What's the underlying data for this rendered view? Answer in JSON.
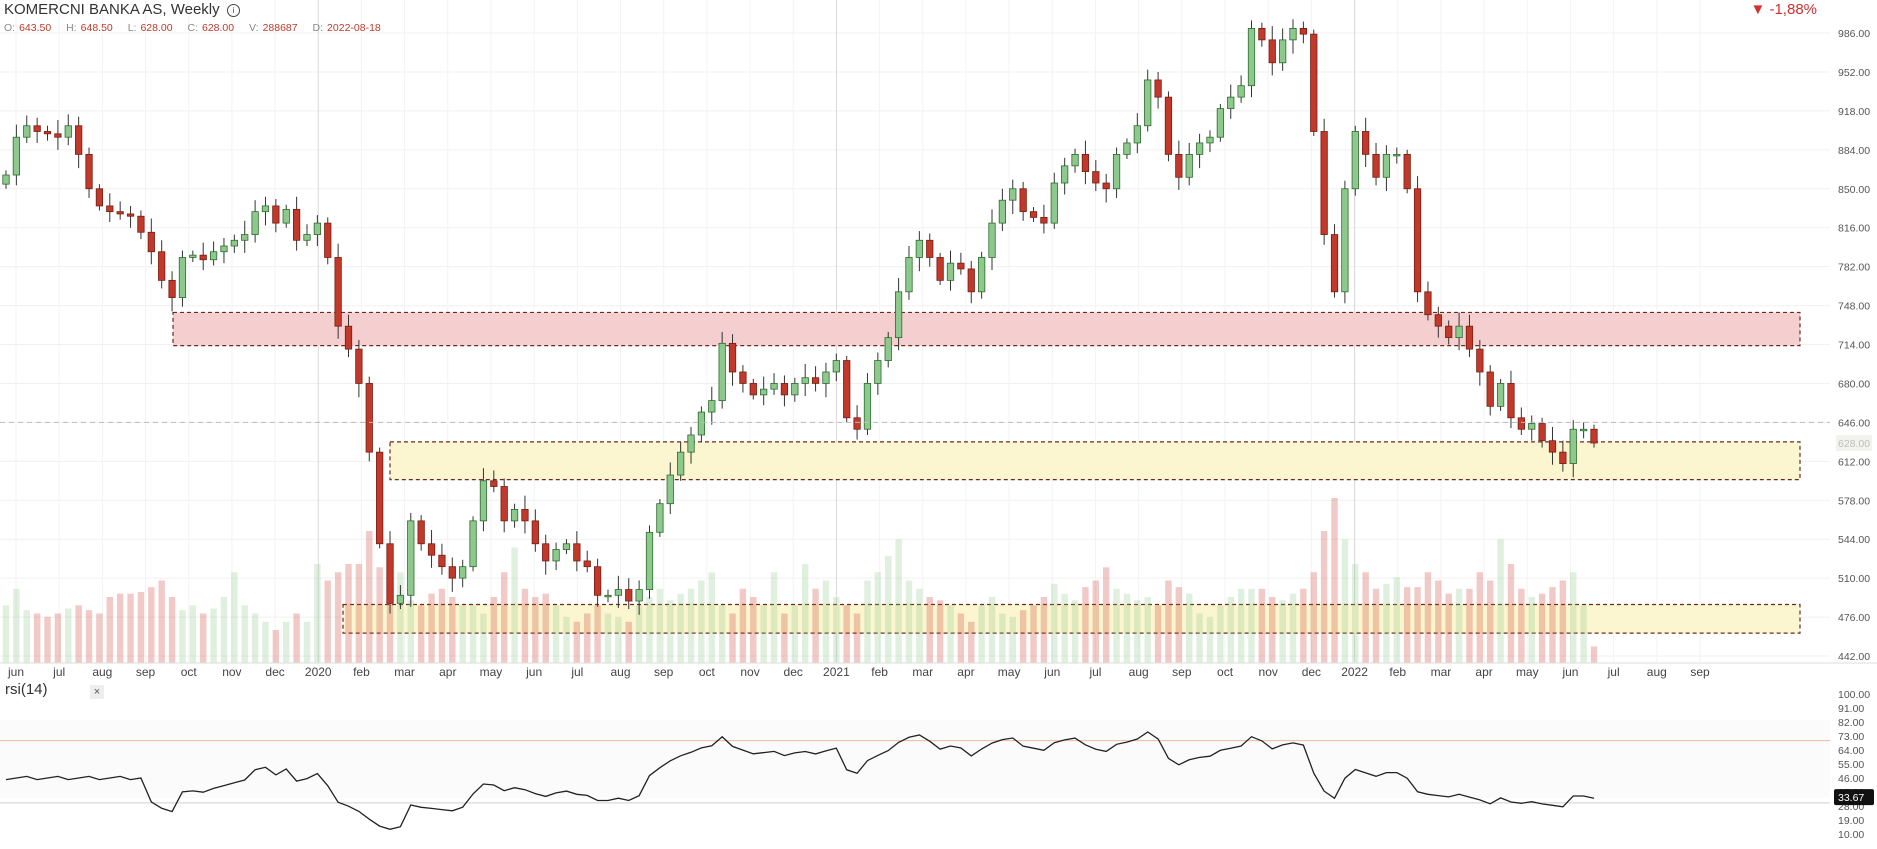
{
  "header": {
    "title": "KOMERCNI BANKA AS, Weekly",
    "ohlc": [
      {
        "label": "O:",
        "value": "643.50"
      },
      {
        "label": "H:",
        "value": "648.50"
      },
      {
        "label": "L:",
        "value": "628.00"
      },
      {
        "label": "C:",
        "value": "628.00"
      },
      {
        "label": "V:",
        "value": "288687"
      },
      {
        "label": "D:",
        "value": "2022-08-18"
      }
    ],
    "change": "▼ -1,88%"
  },
  "indicator": {
    "label": "rsi(14)",
    "close": "×"
  },
  "colors": {
    "up": "#8dc88d",
    "down": "#c0392b",
    "resistance": "#f5cfcf",
    "support": "#fbf6cf"
  },
  "chart_data": {
    "type": "candlestick",
    "price_axis": {
      "min": 442,
      "max": 986,
      "ticks": [
        "986.00",
        "952.00",
        "918.00",
        "884.00",
        "850.00",
        "816.00",
        "782.00",
        "748.00",
        "714.00",
        "680.00",
        "646.00",
        "612.00",
        "578.00",
        "544.00",
        "510.00",
        "476.00",
        "442.00"
      ],
      "current_price_label": "628.00"
    },
    "time_axis": [
      "jun",
      "jul",
      "aug",
      "sep",
      "oct",
      "nov",
      "dec",
      "2020",
      "feb",
      "mar",
      "apr",
      "may",
      "jun",
      "jul",
      "aug",
      "sep",
      "oct",
      "nov",
      "dec",
      "2021",
      "feb",
      "mar",
      "apr",
      "may",
      "jun",
      "jul",
      "aug",
      "sep",
      "oct",
      "nov",
      "dec",
      "2022",
      "feb",
      "mar",
      "apr",
      "may",
      "jun",
      "jul",
      "aug",
      "sep"
    ],
    "zones": [
      {
        "name": "resistance",
        "low": 713,
        "high": 742
      },
      {
        "name": "support",
        "low": 596,
        "high": 629
      },
      {
        "name": "volume-support",
        "low": 462,
        "high": 487
      }
    ],
    "closes": [
      862,
      895,
      905,
      900,
      898,
      895,
      905,
      880,
      850,
      835,
      830,
      828,
      826,
      812,
      795,
      770,
      755,
      790,
      792,
      788,
      795,
      800,
      805,
      810,
      830,
      835,
      820,
      832,
      805,
      810,
      820,
      790,
      730,
      710,
      680,
      620,
      540,
      488,
      495,
      560,
      540,
      530,
      520,
      510,
      520,
      560,
      595,
      590,
      560,
      570,
      560,
      540,
      525,
      535,
      540,
      525,
      520,
      495,
      495,
      500,
      490,
      500,
      550,
      575,
      600,
      620,
      635,
      655,
      665,
      715,
      690,
      680,
      670,
      675,
      680,
      670,
      680,
      685,
      680,
      690,
      700,
      650,
      640,
      680,
      700,
      720,
      760,
      790,
      805,
      790,
      770,
      785,
      780,
      760,
      790,
      820,
      840,
      850,
      830,
      825,
      820,
      855,
      870,
      880,
      865,
      855,
      850,
      880,
      890,
      905,
      945,
      930,
      880,
      860,
      880,
      890,
      895,
      920,
      930,
      940,
      990,
      980,
      960,
      980,
      990,
      985,
      900,
      810,
      760,
      850,
      900,
      880,
      860,
      880,
      880,
      850,
      760,
      740,
      730,
      720,
      730,
      710,
      690,
      660,
      680,
      650,
      640,
      645,
      630,
      620,
      610,
      640,
      640,
      628
    ],
    "volume_levels": [
      0.35,
      0.45,
      0.32,
      0.3,
      0.28,
      0.3,
      0.33,
      0.35,
      0.32,
      0.3,
      0.4,
      0.42,
      0.42,
      0.43,
      0.46,
      0.5,
      0.4,
      0.32,
      0.35,
      0.3,
      0.33,
      0.4,
      0.55,
      0.35,
      0.3,
      0.25,
      0.2,
      0.25,
      0.3,
      0.25,
      0.6,
      0.5,
      0.55,
      0.6,
      0.6,
      0.8,
      0.58,
      0.6,
      0.55,
      0.38,
      0.35,
      0.42,
      0.45,
      0.4,
      0.35,
      0.35,
      0.3,
      0.4,
      0.55,
      0.7,
      0.45,
      0.4,
      0.42,
      0.35,
      0.28,
      0.25,
      0.3,
      0.35,
      0.3,
      0.28,
      0.25,
      0.35,
      0.4,
      0.45,
      0.38,
      0.42,
      0.45,
      0.5,
      0.55,
      0.35,
      0.3,
      0.45,
      0.4,
      0.35,
      0.55,
      0.3,
      0.35,
      0.6,
      0.45,
      0.5,
      0.4,
      0.35,
      0.3,
      0.5,
      0.55,
      0.65,
      0.75,
      0.5,
      0.45,
      0.4,
      0.38,
      0.35,
      0.3,
      0.25,
      0.35,
      0.4,
      0.3,
      0.28,
      0.32,
      0.35,
      0.4,
      0.48,
      0.42,
      0.38,
      0.46,
      0.5,
      0.58,
      0.45,
      0.42,
      0.38,
      0.4,
      0.35,
      0.5,
      0.46,
      0.42,
      0.3,
      0.28,
      0.35,
      0.4,
      0.45,
      0.45,
      0.45,
      0.4,
      0.38,
      0.42,
      0.45,
      0.55,
      0.8,
      1.0,
      0.75,
      0.6,
      0.55,
      0.45,
      0.48,
      0.52,
      0.46,
      0.46,
      0.55,
      0.5,
      0.42,
      0.45,
      0.45,
      0.55,
      0.5,
      0.75,
      0.6,
      0.45,
      0.4,
      0.42,
      0.46,
      0.5,
      0.55,
      0.35,
      0.1
    ],
    "rsi": {
      "period": 14,
      "ticks": [
        "100.00",
        "91.00",
        "82.00",
        "73.00",
        "64.00",
        "55.00",
        "46.00",
        "37.00",
        "28.00",
        "19.00",
        "10.00"
      ],
      "overbought": 70,
      "oversold": 30,
      "current": "33.67"
    }
  }
}
